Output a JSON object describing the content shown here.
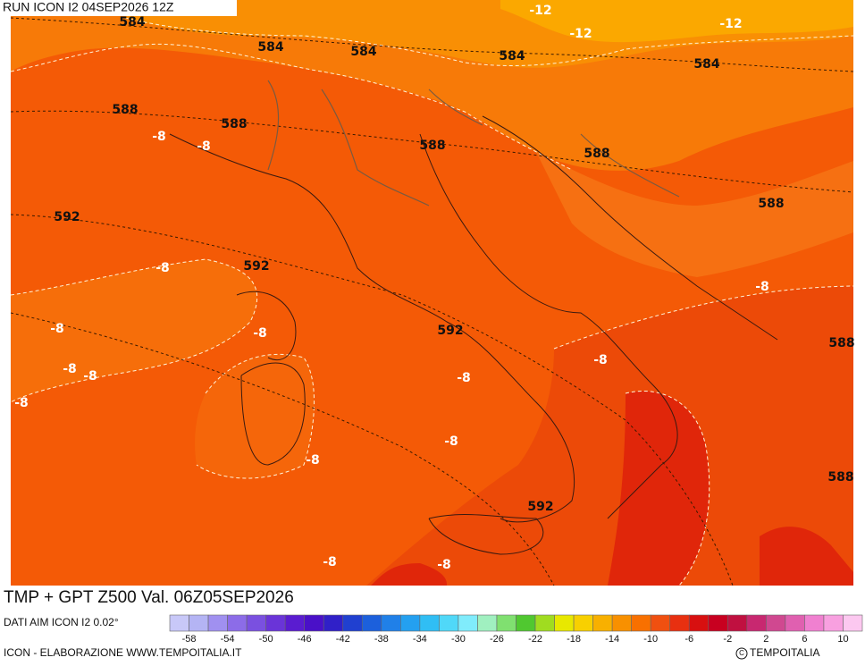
{
  "header": {
    "run": "RUN ICON I2 04SEP2026 12Z"
  },
  "map": {
    "labels": [
      "584",
      "-12",
      "-12",
      "-12",
      "584",
      "584",
      "584",
      "584",
      "588",
      "588",
      "-8",
      "-8",
      "588",
      "588",
      "588",
      "592",
      "-8",
      "592",
      "-8",
      "-8",
      "-8",
      "592",
      "588",
      "-8",
      "-8",
      "-8",
      "-8",
      "-8",
      "-8",
      "-8",
      "588",
      "592",
      "-8",
      "-8"
    ]
  },
  "footer": {
    "title": "TMP + GPT Z500 Val. 06Z05SEP2026",
    "source": "DATI AIM ICON I2 0.02°",
    "credit": "ICON - ELABORAZIONE WWW.TEMPOITALIA.IT",
    "logo": "TEMPOITALIA"
  },
  "colorbar": {
    "ticks": [
      "-58",
      "-54",
      "-50",
      "-46",
      "-42",
      "-38",
      "-34",
      "-30",
      "-26",
      "-22",
      "-18",
      "-14",
      "-10",
      "-6",
      "-2",
      "2",
      "6",
      "10"
    ],
    "colors": [
      "#c8c8f8",
      "#b4b4f4",
      "#a090f0",
      "#8c6ce8",
      "#7a50e0",
      "#6a34d8",
      "#5a1cd0",
      "#4a10c8",
      "#3020c8",
      "#2040d0",
      "#1c60dc",
      "#2080e8",
      "#24a0f0",
      "#30bef4",
      "#50d8f8",
      "#80ecfc",
      "#a0f0c0",
      "#80e070",
      "#50c830",
      "#a0dc20",
      "#e8e800",
      "#f8d000",
      "#f8b000",
      "#f89000",
      "#f87000",
      "#f05010",
      "#e83010",
      "#d81010",
      "#c80020",
      "#c01040",
      "#c82870",
      "#d04890",
      "#e060b0",
      "#f080d0",
      "#f8a0e0",
      "#fcc8f0"
    ]
  }
}
